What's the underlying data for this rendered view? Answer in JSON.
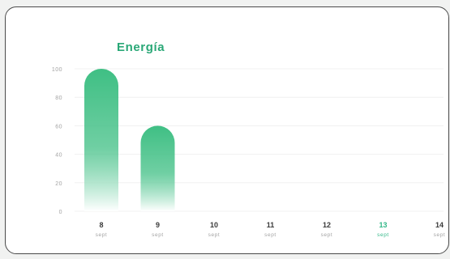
{
  "card": {
    "title": "Energía"
  },
  "colors": {
    "accent": "#2aa877",
    "bar_top": "#3fbf84",
    "bar_bottom": "#ffffff",
    "selected_day": "#33b889",
    "axis_text": "#a3a3a3",
    "day_text": "#3a3a3a",
    "grid": "#f0f0f0"
  },
  "chart_data": {
    "type": "bar",
    "title": "Energía",
    "xlabel": "",
    "ylabel": "",
    "ylim": [
      0,
      100
    ],
    "yticks": [
      0,
      20,
      40,
      60,
      80,
      100
    ],
    "categories": [
      {
        "day": "8",
        "month": "sept",
        "selected": false
      },
      {
        "day": "9",
        "month": "sept",
        "selected": false
      },
      {
        "day": "10",
        "month": "sept",
        "selected": false
      },
      {
        "day": "11",
        "month": "sept",
        "selected": false
      },
      {
        "day": "12",
        "month": "sept",
        "selected": false
      },
      {
        "day": "13",
        "month": "sept",
        "selected": true
      },
      {
        "day": "14",
        "month": "sept",
        "selected": false
      }
    ],
    "values": [
      100,
      60,
      0,
      0,
      0,
      0,
      0
    ],
    "grid": true
  }
}
